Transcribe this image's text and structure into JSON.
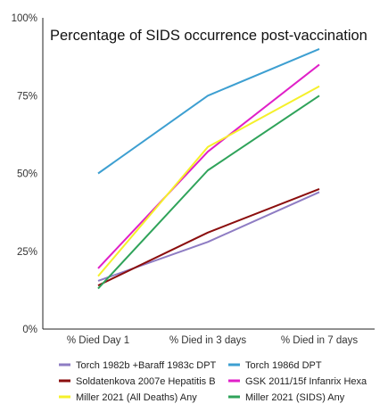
{
  "chart_data": {
    "type": "line",
    "title": "Percentage of SIDS occurrence post-vaccination",
    "xlabel": "",
    "ylabel": "",
    "categories": [
      "% Died Day 1",
      "% Died in 3 days",
      "% Died in 7 days"
    ],
    "ylim": [
      0,
      100
    ],
    "yticks": [
      0,
      25,
      50,
      75,
      100
    ],
    "ytick_labels": [
      "0%",
      "25%",
      "50%",
      "75%",
      "100%"
    ],
    "grid": false,
    "legend_position": "bottom",
    "series": [
      {
        "name": "Torch 1982b +Baraff 1983c DPT",
        "color": "#8e7cc3",
        "values": [
          15.5,
          28,
          44
        ]
      },
      {
        "name": "Torch 1986d DPT",
        "color": "#3d9fd1",
        "values": [
          50,
          75,
          90
        ]
      },
      {
        "name": "Soldatenkova 2007e Hepatitis B",
        "color": "#8b0e0e",
        "values": [
          14,
          31,
          45
        ]
      },
      {
        "name": "GSK 2011/15f Infanrix Hexa",
        "color": "#e020c8",
        "values": [
          19.5,
          57,
          85
        ]
      },
      {
        "name": "Miller 2021 (All Deaths) Any",
        "color": "#f5f02a",
        "values": [
          17,
          58.5,
          78
        ]
      },
      {
        "name": "Miller 2021 (SIDS) Any",
        "color": "#2fa35a",
        "values": [
          13,
          51,
          75
        ]
      }
    ]
  }
}
